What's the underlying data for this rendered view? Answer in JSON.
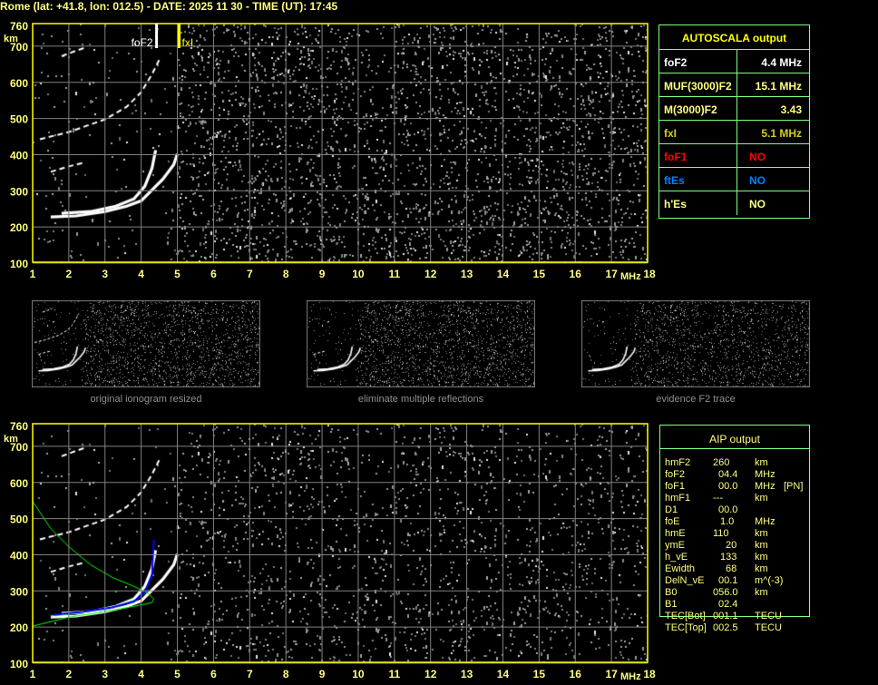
{
  "header": "Rome (lat: +41.8, lon: 012.5) - DATE: 2025 11 30 - TIME (UT): 17:45",
  "axes": {
    "y_unit": "km",
    "x_unit": "MHz",
    "y_ticks": [
      "760",
      "700",
      "600",
      "500",
      "400",
      "300",
      "200",
      "100"
    ],
    "x_ticks": [
      "1",
      "2",
      "3",
      "4",
      "5",
      "6",
      "7",
      "8",
      "9",
      "10",
      "11",
      "12",
      "13",
      "14",
      "15",
      "16",
      "17",
      "18"
    ]
  },
  "markers": {
    "foF2_label": "foF2",
    "fxI_label": "fxI",
    "foF2_mhz": 4.4,
    "fxI_mhz": 5.1
  },
  "colors": {
    "frame": "#ffff00",
    "grid": "#808080",
    "table_border": "#80ff80",
    "text_yellow": "#ffff80",
    "red": "#ff0000",
    "blue": "#0080ff",
    "model_green": "#00ff00",
    "trace_blue": "#0000ff"
  },
  "autoscala": {
    "title": "AUTOSCALA output",
    "rows": [
      {
        "label": "foF2",
        "value": "4.4 MHz",
        "color": "#ffffff"
      },
      {
        "label": "MUF(3000)F2",
        "value": "15.1 MHz",
        "color": "#ffff80"
      },
      {
        "label": "M(3000)F2",
        "value": "3.43",
        "color": "#ffff80"
      },
      {
        "label": "fxI",
        "value": "5.1 MHz",
        "color": "#d0d020"
      },
      {
        "label": "foF1",
        "value": "NO",
        "color": "#ff0000"
      },
      {
        "label": "ftEs",
        "value": "NO",
        "color": "#0080ff"
      },
      {
        "label": "h'Es",
        "value": "NO",
        "color": "#ffff80"
      }
    ]
  },
  "thumbnails": [
    {
      "caption": "original ionogram resized"
    },
    {
      "caption": "eliminate multiple reflections"
    },
    {
      "caption": "evidence F2 trace"
    }
  ],
  "aip": {
    "title": "AIP output",
    "rows": [
      [
        "hmF2",
        "260",
        "km",
        ""
      ],
      [
        "foF2",
        "04.4",
        "MHz",
        ""
      ],
      [
        "foF1",
        "00.0",
        "MHz",
        "[PN]"
      ],
      [
        "hmF1",
        "---",
        "km",
        ""
      ],
      [
        "D1",
        "00.0",
        "",
        ""
      ],
      [
        "foE",
        "1.0",
        "MHz",
        ""
      ],
      [
        "hmE",
        "110",
        "km",
        ""
      ],
      [
        "ymE",
        "20",
        "km",
        ""
      ],
      [
        "h_vE",
        "133",
        "km",
        ""
      ],
      [
        "Ewidth",
        "68",
        "km",
        ""
      ],
      [
        "DelN_vE",
        "00.1",
        "m^(-3)",
        ""
      ],
      [
        "B0",
        "056.0",
        "km",
        ""
      ],
      [
        "B1",
        "02.4",
        "",
        ""
      ],
      [
        "TEC[Bot]",
        "001.1",
        "TECU",
        ""
      ],
      [
        "TEC[Top]",
        "002.5",
        "TECU",
        ""
      ]
    ]
  }
}
